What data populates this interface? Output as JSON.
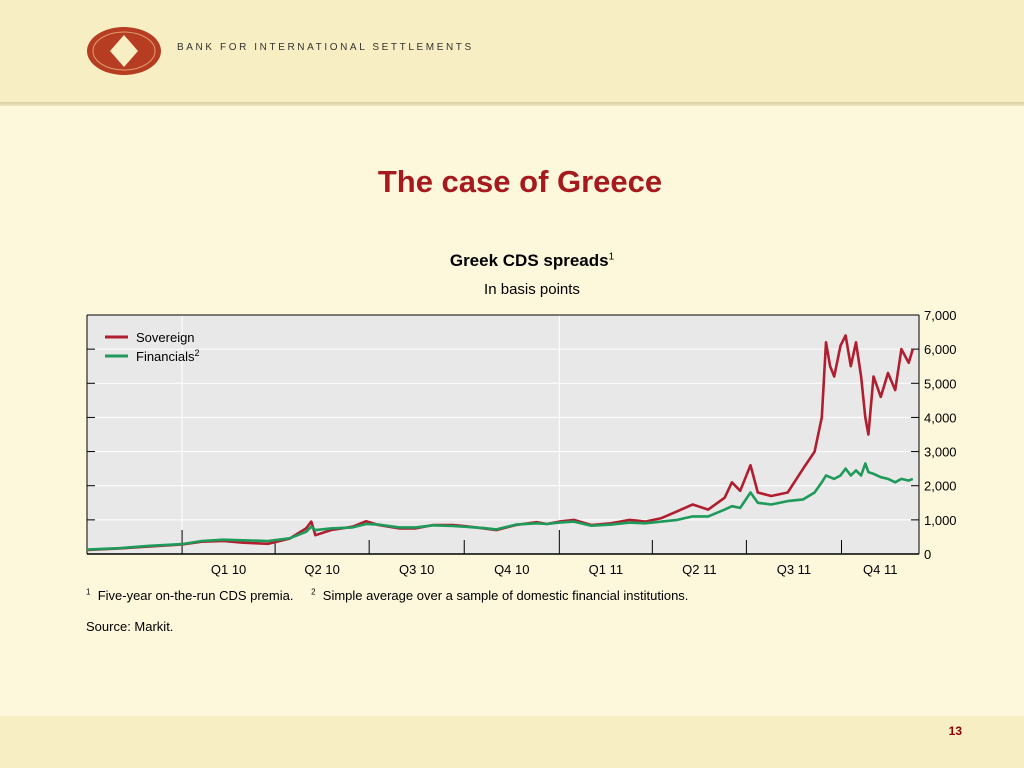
{
  "header": {
    "org_name": "BANK FOR INTERNATIONAL SETTLEMENTS",
    "logo_icon": "bis-logo-icon"
  },
  "slide": {
    "title": "The case of Greece",
    "page_number": "13"
  },
  "footnotes": {
    "note1_marker": "1",
    "note1_text": "Five-year on-the-run CDS premia.",
    "note2_marker": "2",
    "note2_text": "Simple average over a sample of domestic financial institutions."
  },
  "source": "Source: Markit.",
  "chart_data": {
    "type": "line",
    "title": "Greek CDS spreads",
    "title_note": "1",
    "subtitle": "In basis points",
    "xlabel": "",
    "ylabel": "",
    "ylim": [
      0,
      7000
    ],
    "y_ticks": [
      0,
      1000,
      2000,
      3000,
      4000,
      5000,
      6000,
      7000
    ],
    "y_tick_labels": [
      "0",
      "1,000",
      "2,000",
      "3,000",
      "4,000",
      "5,000",
      "6,000",
      "7,000"
    ],
    "y_axis_side": "right",
    "x_range": [
      "2009-10-01",
      "2011-12-15"
    ],
    "x_quarter_boundaries": [
      "2010-01-01",
      "2010-04-01",
      "2010-07-01",
      "2010-10-01",
      "2011-01-01",
      "2011-04-01",
      "2011-07-01",
      "2011-10-01"
    ],
    "x_tick_labels": [
      "Q1 10",
      "Q2 10",
      "Q3 10",
      "Q4 10",
      "Q1 11",
      "Q2 11",
      "Q3 11",
      "Q4 11"
    ],
    "x_year_lines": [
      "2010-01-01",
      "2011-01-01"
    ],
    "grid": true,
    "legend_position": "top-left",
    "colors": {
      "plot_background": "#e8e8e8",
      "grid": "#ffffff"
    },
    "series": [
      {
        "name": "Sovereign",
        "name_note": "",
        "color": "#b01e2f",
        "points": [
          [
            "2009-10-01",
            120
          ],
          [
            "2009-11-01",
            160
          ],
          [
            "2009-12-01",
            220
          ],
          [
            "2010-01-01",
            280
          ],
          [
            "2010-01-20",
            360
          ],
          [
            "2010-02-10",
            380
          ],
          [
            "2010-03-01",
            330
          ],
          [
            "2010-03-25",
            300
          ],
          [
            "2010-04-15",
            450
          ],
          [
            "2010-05-01",
            750
          ],
          [
            "2010-05-06",
            950
          ],
          [
            "2010-05-10",
            550
          ],
          [
            "2010-05-25",
            700
          ],
          [
            "2010-06-15",
            800
          ],
          [
            "2010-06-28",
            960
          ],
          [
            "2010-07-10",
            850
          ],
          [
            "2010-07-30",
            750
          ],
          [
            "2010-08-15",
            750
          ],
          [
            "2010-09-01",
            850
          ],
          [
            "2010-09-20",
            850
          ],
          [
            "2010-10-01",
            820
          ],
          [
            "2010-10-20",
            750
          ],
          [
            "2010-11-01",
            700
          ],
          [
            "2010-11-20",
            850
          ],
          [
            "2010-12-10",
            930
          ],
          [
            "2010-12-20",
            880
          ],
          [
            "2011-01-01",
            950
          ],
          [
            "2011-01-15",
            1000
          ],
          [
            "2011-02-01",
            850
          ],
          [
            "2011-02-20",
            900
          ],
          [
            "2011-03-10",
            1000
          ],
          [
            "2011-03-25",
            950
          ],
          [
            "2011-04-10",
            1050
          ],
          [
            "2011-04-25",
            1250
          ],
          [
            "2011-05-10",
            1450
          ],
          [
            "2011-05-25",
            1300
          ],
          [
            "2011-06-10",
            1650
          ],
          [
            "2011-06-17",
            2100
          ],
          [
            "2011-06-25",
            1850
          ],
          [
            "2011-07-05",
            2600
          ],
          [
            "2011-07-12",
            1800
          ],
          [
            "2011-07-25",
            1700
          ],
          [
            "2011-08-10",
            1800
          ],
          [
            "2011-08-25",
            2500
          ],
          [
            "2011-09-05",
            3000
          ],
          [
            "2011-09-12",
            4000
          ],
          [
            "2011-09-16",
            6200
          ],
          [
            "2011-09-20",
            5500
          ],
          [
            "2011-09-24",
            5200
          ],
          [
            "2011-09-30",
            6100
          ],
          [
            "2011-10-05",
            6400
          ],
          [
            "2011-10-10",
            5500
          ],
          [
            "2011-10-15",
            6200
          ],
          [
            "2011-10-20",
            5200
          ],
          [
            "2011-10-24",
            4000
          ],
          [
            "2011-10-27",
            3500
          ],
          [
            "2011-11-01",
            5200
          ],
          [
            "2011-11-08",
            4600
          ],
          [
            "2011-11-15",
            5300
          ],
          [
            "2011-11-22",
            4800
          ],
          [
            "2011-11-28",
            6000
          ],
          [
            "2011-12-05",
            5600
          ],
          [
            "2011-12-09",
            6000
          ]
        ]
      },
      {
        "name": "Financials",
        "name_note": "2",
        "color": "#1e9a5a",
        "points": [
          [
            "2009-10-01",
            130
          ],
          [
            "2009-11-01",
            170
          ],
          [
            "2009-12-01",
            240
          ],
          [
            "2010-01-01",
            290
          ],
          [
            "2010-01-20",
            380
          ],
          [
            "2010-02-10",
            420
          ],
          [
            "2010-03-01",
            400
          ],
          [
            "2010-03-25",
            380
          ],
          [
            "2010-04-15",
            460
          ],
          [
            "2010-05-01",
            650
          ],
          [
            "2010-05-06",
            800
          ],
          [
            "2010-05-10",
            700
          ],
          [
            "2010-05-25",
            750
          ],
          [
            "2010-06-15",
            780
          ],
          [
            "2010-06-28",
            880
          ],
          [
            "2010-07-10",
            860
          ],
          [
            "2010-07-30",
            780
          ],
          [
            "2010-08-15",
            780
          ],
          [
            "2010-09-01",
            840
          ],
          [
            "2010-09-20",
            820
          ],
          [
            "2010-10-01",
            800
          ],
          [
            "2010-10-20",
            760
          ],
          [
            "2010-11-01",
            720
          ],
          [
            "2010-11-20",
            860
          ],
          [
            "2010-12-10",
            900
          ],
          [
            "2010-12-20",
            880
          ],
          [
            "2011-01-01",
            920
          ],
          [
            "2011-01-15",
            950
          ],
          [
            "2011-02-01",
            830
          ],
          [
            "2011-02-20",
            860
          ],
          [
            "2011-03-10",
            920
          ],
          [
            "2011-03-25",
            900
          ],
          [
            "2011-04-10",
            950
          ],
          [
            "2011-04-25",
            1000
          ],
          [
            "2011-05-10",
            1100
          ],
          [
            "2011-05-25",
            1100
          ],
          [
            "2011-06-10",
            1300
          ],
          [
            "2011-06-17",
            1400
          ],
          [
            "2011-06-25",
            1350
          ],
          [
            "2011-07-05",
            1800
          ],
          [
            "2011-07-12",
            1500
          ],
          [
            "2011-07-25",
            1450
          ],
          [
            "2011-08-10",
            1550
          ],
          [
            "2011-08-25",
            1600
          ],
          [
            "2011-09-05",
            1800
          ],
          [
            "2011-09-12",
            2100
          ],
          [
            "2011-09-16",
            2300
          ],
          [
            "2011-09-20",
            2250
          ],
          [
            "2011-09-24",
            2200
          ],
          [
            "2011-09-30",
            2300
          ],
          [
            "2011-10-05",
            2500
          ],
          [
            "2011-10-10",
            2300
          ],
          [
            "2011-10-15",
            2450
          ],
          [
            "2011-10-20",
            2300
          ],
          [
            "2011-10-24",
            2650
          ],
          [
            "2011-10-27",
            2400
          ],
          [
            "2011-11-01",
            2350
          ],
          [
            "2011-11-08",
            2250
          ],
          [
            "2011-11-15",
            2200
          ],
          [
            "2011-11-22",
            2100
          ],
          [
            "2011-11-28",
            2200
          ],
          [
            "2011-12-05",
            2150
          ],
          [
            "2011-12-09",
            2200
          ]
        ]
      }
    ]
  }
}
